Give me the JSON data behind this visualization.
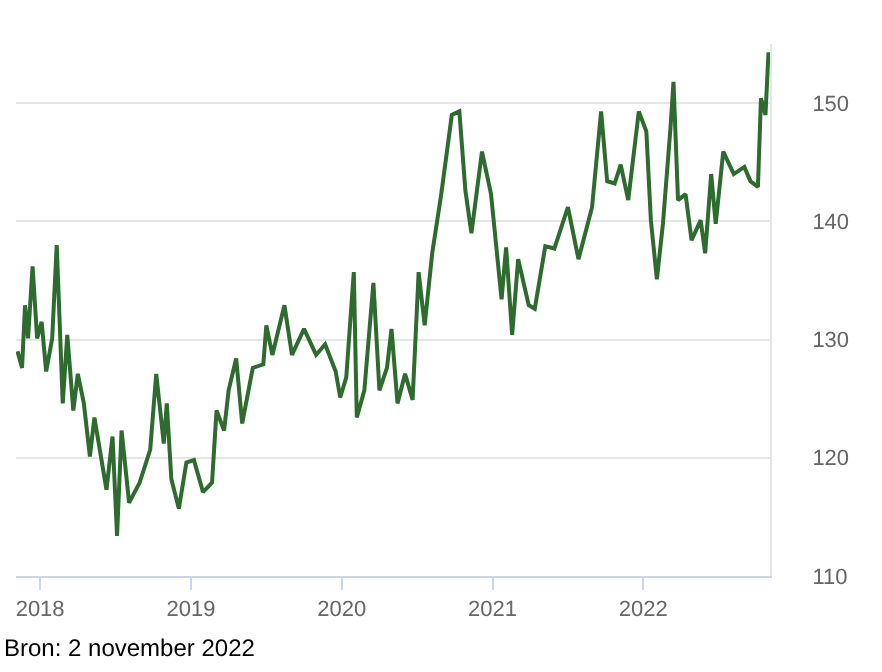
{
  "chart_data": {
    "type": "line",
    "x": [
      2017.85,
      2017.88,
      2017.9,
      2017.92,
      2017.95,
      2017.98,
      2018.01,
      2018.04,
      2018.08,
      2018.11,
      2018.15,
      2018.18,
      2018.22,
      2018.25,
      2018.29,
      2018.33,
      2018.36,
      2018.44,
      2018.48,
      2018.51,
      2018.54,
      2018.59,
      2018.66,
      2018.73,
      2018.77,
      2018.82,
      2018.84,
      2018.87,
      2018.92,
      2018.97,
      2019.02,
      2019.08,
      2019.14,
      2019.17,
      2019.22,
      2019.25,
      2019.3,
      2019.34,
      2019.41,
      2019.48,
      2019.5,
      2019.54,
      2019.62,
      2019.67,
      2019.75,
      2019.83,
      2019.89,
      2019.96,
      2019.99,
      2020.03,
      2020.08,
      2020.1,
      2020.15,
      2020.21,
      2020.25,
      2020.3,
      2020.33,
      2020.37,
      2020.42,
      2020.47,
      2020.51,
      2020.55,
      2020.6,
      2020.66,
      2020.73,
      2020.78,
      2020.82,
      2020.86,
      2020.93,
      2020.99,
      2021.06,
      2021.09,
      2021.13,
      2021.17,
      2021.24,
      2021.28,
      2021.35,
      2021.41,
      2021.5,
      2021.57,
      2021.66,
      2021.72,
      2021.76,
      2021.81,
      2021.85,
      2021.9,
      2021.97,
      2022.02,
      2022.05,
      2022.09,
      2022.13,
      2022.18,
      2022.2,
      2022.23,
      2022.28,
      2022.32,
      2022.38,
      2022.41,
      2022.45,
      2022.48,
      2022.53,
      2022.6,
      2022.67,
      2022.71,
      2022.76,
      2022.78,
      2022.81,
      2022.83
    ],
    "series": [
      {
        "color": "#2e6b2e",
        "values": [
          129.0,
          127.6,
          132.9,
          130.1,
          136.2,
          130.1,
          131.5,
          127.3,
          130.1,
          138.0,
          124.6,
          130.4,
          124.0,
          127.1,
          124.6,
          120.1,
          123.4,
          117.3,
          121.8,
          113.4,
          122.3,
          116.2,
          117.9,
          120.7,
          127.1,
          121.2,
          124.6,
          118.2,
          115.7,
          119.6,
          119.8,
          117.1,
          117.9,
          124.0,
          122.3,
          125.7,
          128.4,
          122.9,
          127.6,
          127.9,
          131.2,
          128.7,
          132.9,
          128.7,
          130.9,
          128.7,
          129.6,
          127.3,
          125.1,
          126.8,
          135.7,
          123.4,
          125.7,
          134.8,
          125.7,
          127.6,
          130.9,
          124.6,
          127.1,
          124.9,
          135.7,
          131.2,
          137.3,
          142.3,
          149.0,
          149.3,
          142.6,
          139.0,
          145.9,
          142.3,
          133.4,
          137.8,
          130.4,
          136.8,
          132.9,
          132.6,
          137.9,
          137.7,
          141.2,
          136.8,
          141.2,
          149.3,
          143.4,
          143.2,
          144.8,
          141.8,
          149.3,
          147.6,
          140.1,
          135.1,
          139.8,
          147.9,
          151.8,
          141.8,
          142.3,
          138.4,
          140.1,
          137.3,
          144.0,
          139.8,
          145.9,
          144.0,
          144.6,
          143.4,
          142.9,
          150.4,
          149.0,
          154.3
        ]
      }
    ],
    "xlim": [
      2017.84,
      2022.84
    ],
    "xticks": [
      2018,
      2019,
      2020,
      2021,
      2022
    ],
    "ylim": [
      110,
      155
    ],
    "yticks": [
      110,
      120,
      130,
      140,
      150
    ],
    "grid": "y",
    "annotations": [
      "Bron: 2 november 2022"
    ]
  }
}
